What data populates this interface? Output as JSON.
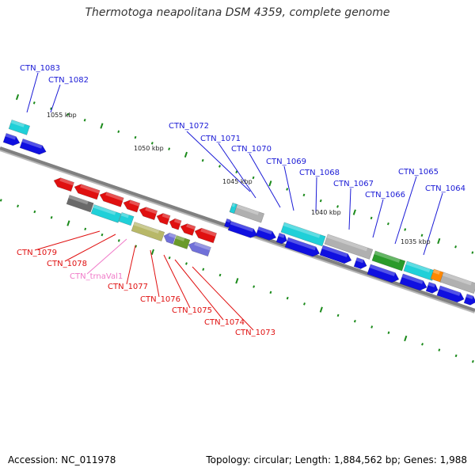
{
  "title": "Thermotoga neapolitana DSM 4359, complete genome",
  "footer": {
    "accession": "Accession: NC_011978",
    "summary": "Topology: circular; Length: 1,884,562 bp; Genes: 1,988"
  },
  "kbp_labels": [
    {
      "text": "1055 kbp"
    },
    {
      "text": "1050 kbp"
    },
    {
      "text": "1045 kbp"
    },
    {
      "text": "1040 kbp"
    },
    {
      "text": "1035 kbp"
    }
  ],
  "gene_labels": [
    {
      "text": "CTN_1083",
      "color": "#1a1ad6"
    },
    {
      "text": "CTN_1082",
      "color": "#1a1ad6"
    },
    {
      "text": "CTN_1072",
      "color": "#1a1ad6"
    },
    {
      "text": "CTN_1071",
      "color": "#1a1ad6"
    },
    {
      "text": "CTN_1070",
      "color": "#1a1ad6"
    },
    {
      "text": "CTN_1069",
      "color": "#1a1ad6"
    },
    {
      "text": "CTN_1068",
      "color": "#1a1ad6"
    },
    {
      "text": "CTN_1067",
      "color": "#1a1ad6"
    },
    {
      "text": "CTN_1066",
      "color": "#1a1ad6"
    },
    {
      "text": "CTN_1065",
      "color": "#1a1ad6"
    },
    {
      "text": "CTN_1064",
      "color": "#1a1ad6"
    },
    {
      "text": "CTN_1079",
      "color": "#e01010"
    },
    {
      "text": "CTN_1078",
      "color": "#e01010"
    },
    {
      "text": "CTN_trnaVal1",
      "color": "#f07ac8"
    },
    {
      "text": "CTN_1077",
      "color": "#e01010"
    },
    {
      "text": "CTN_1076",
      "color": "#e01010"
    },
    {
      "text": "CTN_1075",
      "color": "#e01010"
    },
    {
      "text": "CTN_1074",
      "color": "#e01010"
    },
    {
      "text": "CTN_1073",
      "color": "#e01010"
    }
  ],
  "colors": {
    "backbone": "#808080",
    "tick_major": "#1a8a1a",
    "forward_cds": "#1010e0",
    "reverse_cds": "#e01010",
    "cyan": "#20d0d8",
    "gray": "#b0b0b0",
    "green": "#2a9a2a",
    "orange": "#ff8800",
    "olive": "#b8b868",
    "violet": "#7070d8"
  }
}
